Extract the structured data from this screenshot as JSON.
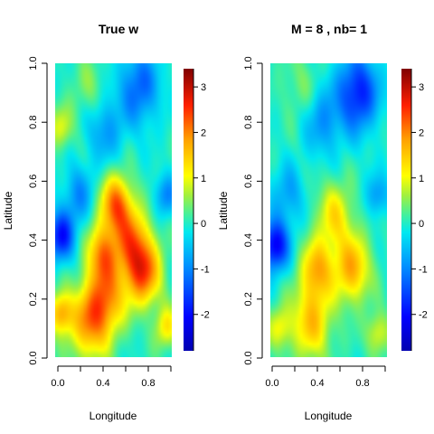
{
  "chart_data": [
    {
      "type": "heatmap",
      "title": "True w",
      "xlabel": "Longitude",
      "ylabel": "Latitude",
      "xlim": [
        0,
        1
      ],
      "ylim": [
        0,
        1
      ],
      "xticks": [
        0.0,
        0.4,
        0.8
      ],
      "xtick_labels": [
        "0.0",
        "0.4",
        "0.8"
      ],
      "yticks": [
        0.0,
        0.2,
        0.4,
        0.6,
        0.8,
        1.0
      ],
      "ytick_labels": [
        "0.0",
        "0.2",
        "0.4",
        "0.6",
        "0.8",
        "1.0"
      ],
      "colorbar": {
        "min": -2.8,
        "max": 3.4,
        "ticks": [
          -2,
          -1,
          0,
          1,
          2,
          3
        ],
        "tick_labels": [
          "-2",
          "-1",
          "0",
          "1",
          "2",
          "3"
        ]
      },
      "field_features": [
        {
          "x": 0.52,
          "y": 0.52,
          "value": 2.1,
          "spread": 0.07
        },
        {
          "x": 0.65,
          "y": 0.4,
          "value": 1.6,
          "spread": 0.08
        },
        {
          "x": 0.75,
          "y": 0.29,
          "value": 2.3,
          "spread": 0.08
        },
        {
          "x": 0.4,
          "y": 0.35,
          "value": 1.8,
          "spread": 0.07
        },
        {
          "x": 0.3,
          "y": 0.12,
          "value": 1.9,
          "spread": 0.09
        },
        {
          "x": 0.45,
          "y": 0.2,
          "value": 1.5,
          "spread": 0.08
        },
        {
          "x": 0.05,
          "y": 0.15,
          "value": 1.7,
          "spread": 0.05
        },
        {
          "x": 0.95,
          "y": 0.1,
          "value": 1.2,
          "spread": 0.05
        },
        {
          "x": 0.05,
          "y": 0.41,
          "value": -1.9,
          "spread": 0.06
        },
        {
          "x": 0.72,
          "y": 0.92,
          "value": -1.3,
          "spread": 0.09
        },
        {
          "x": 0.42,
          "y": 0.78,
          "value": -0.9,
          "spread": 0.08
        },
        {
          "x": 0.2,
          "y": 0.55,
          "value": -0.9,
          "spread": 0.07
        },
        {
          "x": 0.95,
          "y": 0.55,
          "value": -1.0,
          "spread": 0.05
        },
        {
          "x": 0.3,
          "y": 0.9,
          "value": 0.5,
          "spread": 0.08
        },
        {
          "x": 0.05,
          "y": 0.78,
          "value": 0.9,
          "spread": 0.05
        }
      ]
    },
    {
      "type": "heatmap",
      "title": "M =  8 , nb= 1",
      "xlabel": "Longitude",
      "ylabel": "Latitude",
      "xlim": [
        0,
        1
      ],
      "ylim": [
        0,
        1
      ],
      "xticks": [
        0.0,
        0.4,
        0.8
      ],
      "xtick_labels": [
        "0.0",
        "0.4",
        "0.8"
      ],
      "yticks": [
        0.0,
        0.2,
        0.4,
        0.6,
        0.8,
        1.0
      ],
      "ytick_labels": [
        "0.0",
        "0.2",
        "0.4",
        "0.6",
        "0.8",
        "1.0"
      ],
      "colorbar": {
        "min": -2.8,
        "max": 3.4,
        "ticks": [
          -2,
          -1,
          0,
          1,
          2,
          3
        ],
        "tick_labels": [
          "-2",
          "-1",
          "0",
          "1",
          "2",
          "3"
        ]
      },
      "field_features": [
        {
          "x": 0.55,
          "y": 0.48,
          "value": 1.2,
          "spread": 0.08
        },
        {
          "x": 0.7,
          "y": 0.3,
          "value": 1.7,
          "spread": 0.08
        },
        {
          "x": 0.4,
          "y": 0.3,
          "value": 1.6,
          "spread": 0.07
        },
        {
          "x": 0.35,
          "y": 0.12,
          "value": 1.5,
          "spread": 0.09
        },
        {
          "x": 0.08,
          "y": 0.1,
          "value": 1.0,
          "spread": 0.05
        },
        {
          "x": 0.92,
          "y": 0.08,
          "value": 1.0,
          "spread": 0.05
        },
        {
          "x": 0.04,
          "y": 0.38,
          "value": -2.2,
          "spread": 0.06
        },
        {
          "x": 0.75,
          "y": 0.9,
          "value": -1.9,
          "spread": 0.09
        },
        {
          "x": 0.45,
          "y": 0.8,
          "value": -0.9,
          "spread": 0.08
        },
        {
          "x": 0.15,
          "y": 0.55,
          "value": -0.8,
          "spread": 0.07
        },
        {
          "x": 0.92,
          "y": 0.55,
          "value": -0.9,
          "spread": 0.05
        },
        {
          "x": 0.25,
          "y": 0.92,
          "value": 0.4,
          "spread": 0.08
        }
      ]
    }
  ]
}
